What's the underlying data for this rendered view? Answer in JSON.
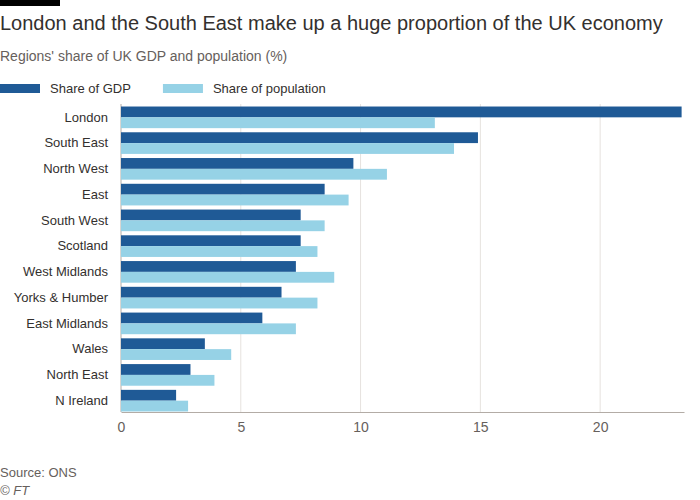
{
  "chart_data": {
    "type": "bar",
    "orientation": "horizontal",
    "title": "London and the South East make up a huge proportion of the UK economy",
    "subtitle": "Regions' share of UK GDP and population (%)",
    "categories": [
      "London",
      "South East",
      "North West",
      "East",
      "South West",
      "Scotland",
      "West Midlands",
      "Yorks & Humber",
      "East Midlands",
      "Wales",
      "North East",
      "N Ireland"
    ],
    "series": [
      {
        "name": "Share of GDP",
        "color": "#1f5a96",
        "values": [
          23.4,
          14.9,
          9.7,
          8.5,
          7.5,
          7.5,
          7.3,
          6.7,
          5.9,
          3.5,
          2.9,
          2.3
        ]
      },
      {
        "name": "Share of population",
        "color": "#96d2e6",
        "values": [
          13.1,
          13.9,
          11.1,
          9.5,
          8.5,
          8.2,
          8.9,
          8.2,
          7.3,
          4.6,
          3.9,
          2.8
        ]
      }
    ],
    "xlim": [
      0,
      23.5
    ],
    "xticks": [
      0,
      5,
      10,
      15,
      20
    ],
    "grid": true,
    "legend": "top-left",
    "annotations": [
      "Source: ONS",
      "© FT"
    ]
  }
}
